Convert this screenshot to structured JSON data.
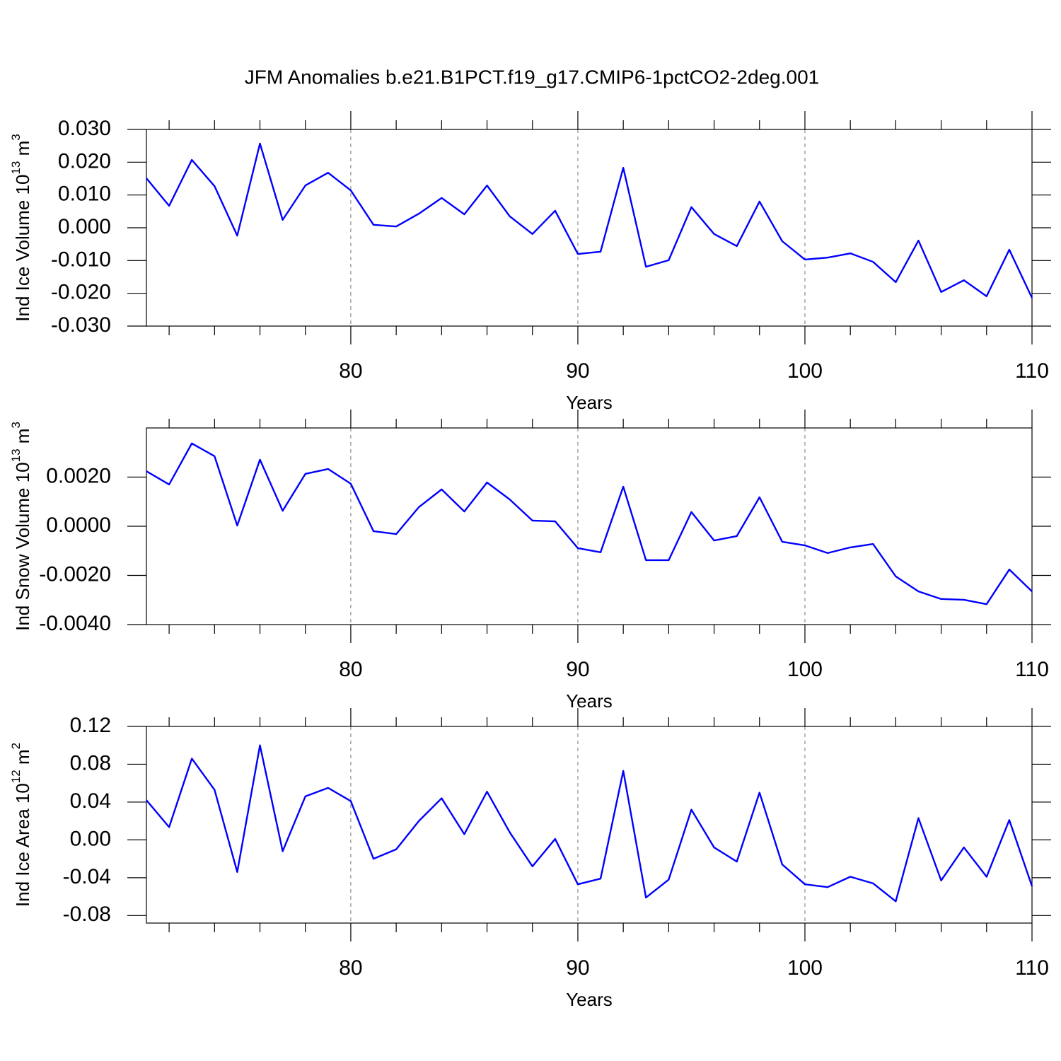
{
  "title": "JFM Anomalies b.e21.B1PCT.f19_g17.CMIP6-1pctCO2-2deg.001",
  "chart_data": [
    {
      "type": "line",
      "ylabel": [
        "Ind Ice Volume 10",
        "13",
        " m",
        "3"
      ],
      "xlabel": "Years",
      "x": [
        71,
        72,
        73,
        74,
        75,
        76,
        77,
        78,
        79,
        80,
        81,
        82,
        83,
        84,
        85,
        86,
        87,
        88,
        89,
        90,
        91,
        92,
        93,
        94,
        95,
        96,
        97,
        98,
        99,
        100,
        101,
        102,
        103,
        104,
        105,
        106,
        107,
        108,
        109,
        110
      ],
      "values": [
        0.0151,
        0.0067,
        0.0207,
        0.0127,
        -0.0024,
        0.0257,
        0.0024,
        0.0129,
        0.0168,
        0.0114,
        0.0009,
        0.0004,
        0.0043,
        0.0091,
        0.0041,
        0.0129,
        0.0035,
        -0.0019,
        0.0052,
        -0.008,
        -0.0073,
        0.0183,
        -0.0119,
        -0.0099,
        0.0063,
        -0.0019,
        -0.0056,
        0.008,
        -0.0041,
        -0.0097,
        -0.0091,
        -0.0078,
        -0.0104,
        -0.0166,
        -0.0039,
        -0.0196,
        -0.016,
        -0.0209,
        -0.0067,
        -0.0214
      ],
      "color": "#0000ff",
      "xlim": [
        71,
        110
      ],
      "xticks": [
        80,
        90,
        100,
        110
      ],
      "xminorticks": [
        72,
        74,
        76,
        78,
        82,
        84,
        86,
        88,
        92,
        94,
        96,
        98,
        102,
        104,
        106,
        108
      ],
      "xgrid": true,
      "ylim": [
        -0.03,
        0.03
      ],
      "yticks": [
        {
          "value": -0.03,
          "label": "-0.030"
        },
        {
          "value": -0.02,
          "label": "-0.020"
        },
        {
          "value": -0.01,
          "label": "-0.010"
        },
        {
          "value": 0,
          "label": "0.000"
        },
        {
          "value": 0.01,
          "label": "0.010"
        },
        {
          "value": 0.02,
          "label": "0.020"
        },
        {
          "value": 0.03,
          "label": "0.030"
        }
      ]
    },
    {
      "type": "line",
      "ylabel": [
        "Ind Snow Volume 10",
        "13",
        " m",
        "3"
      ],
      "xlabel": "Years",
      "x": [
        71,
        72,
        73,
        74,
        75,
        76,
        77,
        78,
        79,
        80,
        81,
        82,
        83,
        84,
        85,
        86,
        87,
        88,
        89,
        90,
        91,
        92,
        93,
        94,
        95,
        96,
        97,
        98,
        99,
        100,
        101,
        102,
        103,
        104,
        105,
        106,
        107,
        108,
        109,
        110
      ],
      "values": [
        0.00224,
        0.0017,
        0.00337,
        0.00285,
        3e-05,
        0.00271,
        0.00063,
        0.00213,
        0.00233,
        0.00173,
        -0.0002,
        -0.00032,
        0.00078,
        0.0015,
        0.0006,
        0.00178,
        0.00109,
        0.00023,
        0.0002,
        -0.00089,
        -0.00106,
        0.00161,
        -0.00138,
        -0.00138,
        0.00058,
        -0.00058,
        -0.0004,
        0.00118,
        -0.00063,
        -0.00078,
        -0.00109,
        -0.00086,
        -0.00072,
        -0.00204,
        -0.00265,
        -0.00296,
        -0.00299,
        -0.00317,
        -0.00176,
        -0.00265
      ],
      "color": "#0000ff",
      "xlim": [
        71,
        110
      ],
      "xticks": [
        80,
        90,
        100,
        110
      ],
      "xminorticks": [
        72,
        74,
        76,
        78,
        82,
        84,
        86,
        88,
        92,
        94,
        96,
        98,
        102,
        104,
        106,
        108
      ],
      "xgrid": true,
      "ylim": [
        -0.004,
        0.004
      ],
      "yticks": [
        {
          "value": -0.004,
          "label": "-0.0040"
        },
        {
          "value": -0.002,
          "label": "-0.0020"
        },
        {
          "value": 0,
          "label": "0.0000"
        },
        {
          "value": 0.002,
          "label": "0.0020"
        }
      ]
    },
    {
      "type": "line",
      "ylabel": [
        "Ind Ice Area 10",
        "12",
        " m",
        "2"
      ],
      "xlabel": "Years",
      "x": [
        71,
        72,
        73,
        74,
        75,
        76,
        77,
        78,
        79,
        80,
        81,
        82,
        83,
        84,
        85,
        86,
        87,
        88,
        89,
        90,
        91,
        92,
        93,
        94,
        95,
        96,
        97,
        98,
        99,
        100,
        101,
        102,
        103,
        104,
        105,
        106,
        107,
        108,
        109,
        110
      ],
      "values": [
        0.042,
        0.0135,
        0.086,
        0.053,
        -0.034,
        0.1,
        -0.012,
        0.046,
        0.055,
        0.041,
        -0.02,
        -0.01,
        0.02,
        0.044,
        0.006,
        0.051,
        0.008,
        -0.028,
        0.001,
        -0.047,
        -0.041,
        0.073,
        -0.061,
        -0.042,
        0.032,
        -0.008,
        -0.023,
        0.05,
        -0.026,
        -0.047,
        -0.05,
        -0.039,
        -0.046,
        -0.065,
        0.023,
        -0.043,
        -0.008,
        -0.039,
        0.021,
        -0.049
      ],
      "color": "#0000ff",
      "xlim": [
        71,
        110
      ],
      "xticks": [
        80,
        90,
        100,
        110
      ],
      "xminorticks": [
        72,
        74,
        76,
        78,
        82,
        84,
        86,
        88,
        92,
        94,
        96,
        98,
        102,
        104,
        106,
        108
      ],
      "xgrid": true,
      "ylim": [
        -0.088,
        0.12
      ],
      "yticks": [
        {
          "value": -0.08,
          "label": "-0.08"
        },
        {
          "value": -0.04,
          "label": "-0.04"
        },
        {
          "value": 0,
          "label": "0.00"
        },
        {
          "value": 0.04,
          "label": "0.04"
        },
        {
          "value": 0.08,
          "label": "0.08"
        },
        {
          "value": 0.12,
          "label": "0.12"
        }
      ]
    }
  ]
}
